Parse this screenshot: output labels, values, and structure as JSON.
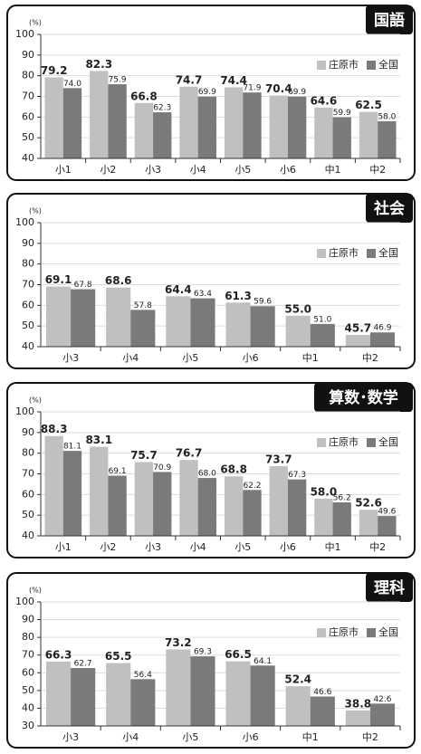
{
  "chart_data": [
    {
      "type": "bar",
      "title": "国語",
      "y_label": "(%)",
      "categories": [
        "小1",
        "小2",
        "小3",
        "小4",
        "小5",
        "小6",
        "中1",
        "中2"
      ],
      "series": [
        {
          "name": "庄原市",
          "color": "#c0c0c0",
          "values": [
            79.2,
            82.3,
            66.8,
            74.7,
            74.4,
            70.4,
            64.6,
            62.5
          ],
          "value_labels": [
            "79.2",
            "82.3",
            "66.8",
            "74.7",
            "74.4",
            "70.4",
            "64.6",
            "62.5"
          ]
        },
        {
          "name": "全国",
          "color": "#7a7a7a",
          "values": [
            74.0,
            75.9,
            62.3,
            69.9,
            71.9,
            69.9,
            59.9,
            58.0
          ],
          "value_labels": [
            "74.0",
            "75.9",
            "62.3",
            "69.9",
            "71.9",
            "69.9",
            "59.9",
            "58.0"
          ]
        }
      ],
      "ylim": [
        40,
        100
      ],
      "yticks": [
        40,
        50,
        60,
        70,
        80,
        90,
        100
      ],
      "grid": true
    },
    {
      "type": "bar",
      "title": "社会",
      "y_label": "(%)",
      "categories": [
        "小3",
        "小4",
        "小5",
        "小6",
        "中1",
        "中2"
      ],
      "series": [
        {
          "name": "庄原市",
          "color": "#c0c0c0",
          "values": [
            69.1,
            68.6,
            64.4,
            61.3,
            55.0,
            45.7
          ],
          "value_labels": [
            "69.1",
            "68.6",
            "64.4",
            "61.3",
            "55.0",
            "45.7"
          ]
        },
        {
          "name": "全国",
          "color": "#7a7a7a",
          "values": [
            67.8,
            57.8,
            63.4,
            59.6,
            51.0,
            46.9
          ],
          "value_labels": [
            "67.8",
            "57.8",
            "63.4",
            "59.6",
            "51.0",
            "46.9"
          ]
        }
      ],
      "ylim": [
        40,
        100
      ],
      "yticks": [
        40,
        50,
        60,
        70,
        80,
        90,
        100
      ],
      "grid": true
    },
    {
      "type": "bar",
      "title": "算数･数学",
      "y_label": "(%)",
      "categories": [
        "小1",
        "小2",
        "小3",
        "小4",
        "小5",
        "小6",
        "中1",
        "中2"
      ],
      "series": [
        {
          "name": "庄原市",
          "color": "#c0c0c0",
          "values": [
            88.3,
            83.1,
            75.7,
            76.7,
            68.8,
            73.7,
            58.0,
            52.6
          ],
          "value_labels": [
            "88.3",
            "83.1",
            "75.7",
            "76.7",
            "68.8",
            "73.7",
            "58.0",
            "52.6"
          ]
        },
        {
          "name": "全国",
          "color": "#7a7a7a",
          "values": [
            81.1,
            69.1,
            70.9,
            68.0,
            62.2,
            67.3,
            56.2,
            49.6
          ],
          "value_labels": [
            "81.1",
            "69.1",
            "70.9",
            "68.0",
            "62.2",
            "67.3",
            "56.2",
            "49.6"
          ]
        }
      ],
      "ylim": [
        40,
        100
      ],
      "yticks": [
        40,
        50,
        60,
        70,
        80,
        90,
        100
      ],
      "grid": true
    },
    {
      "type": "bar",
      "title": "理科",
      "y_label": "(%)",
      "categories": [
        "小3",
        "小4",
        "小5",
        "小6",
        "中1",
        "中2"
      ],
      "series": [
        {
          "name": "庄原市",
          "color": "#c0c0c0",
          "values": [
            66.3,
            65.5,
            73.2,
            66.5,
            52.4,
            38.8
          ],
          "value_labels": [
            "66.3",
            "65.5",
            "73.2",
            "66.5",
            "52.4",
            "38.8"
          ]
        },
        {
          "name": "全国",
          "color": "#7a7a7a",
          "values": [
            62.7,
            56.4,
            69.3,
            64.1,
            46.6,
            42.6
          ],
          "value_labels": [
            "62.7",
            "56.4",
            "69.3",
            "64.1",
            "46.6",
            "42.6"
          ]
        }
      ],
      "ylim": [
        30,
        100
      ],
      "yticks": [
        30,
        40,
        50,
        60,
        70,
        80,
        90,
        100
      ],
      "grid": true
    }
  ]
}
